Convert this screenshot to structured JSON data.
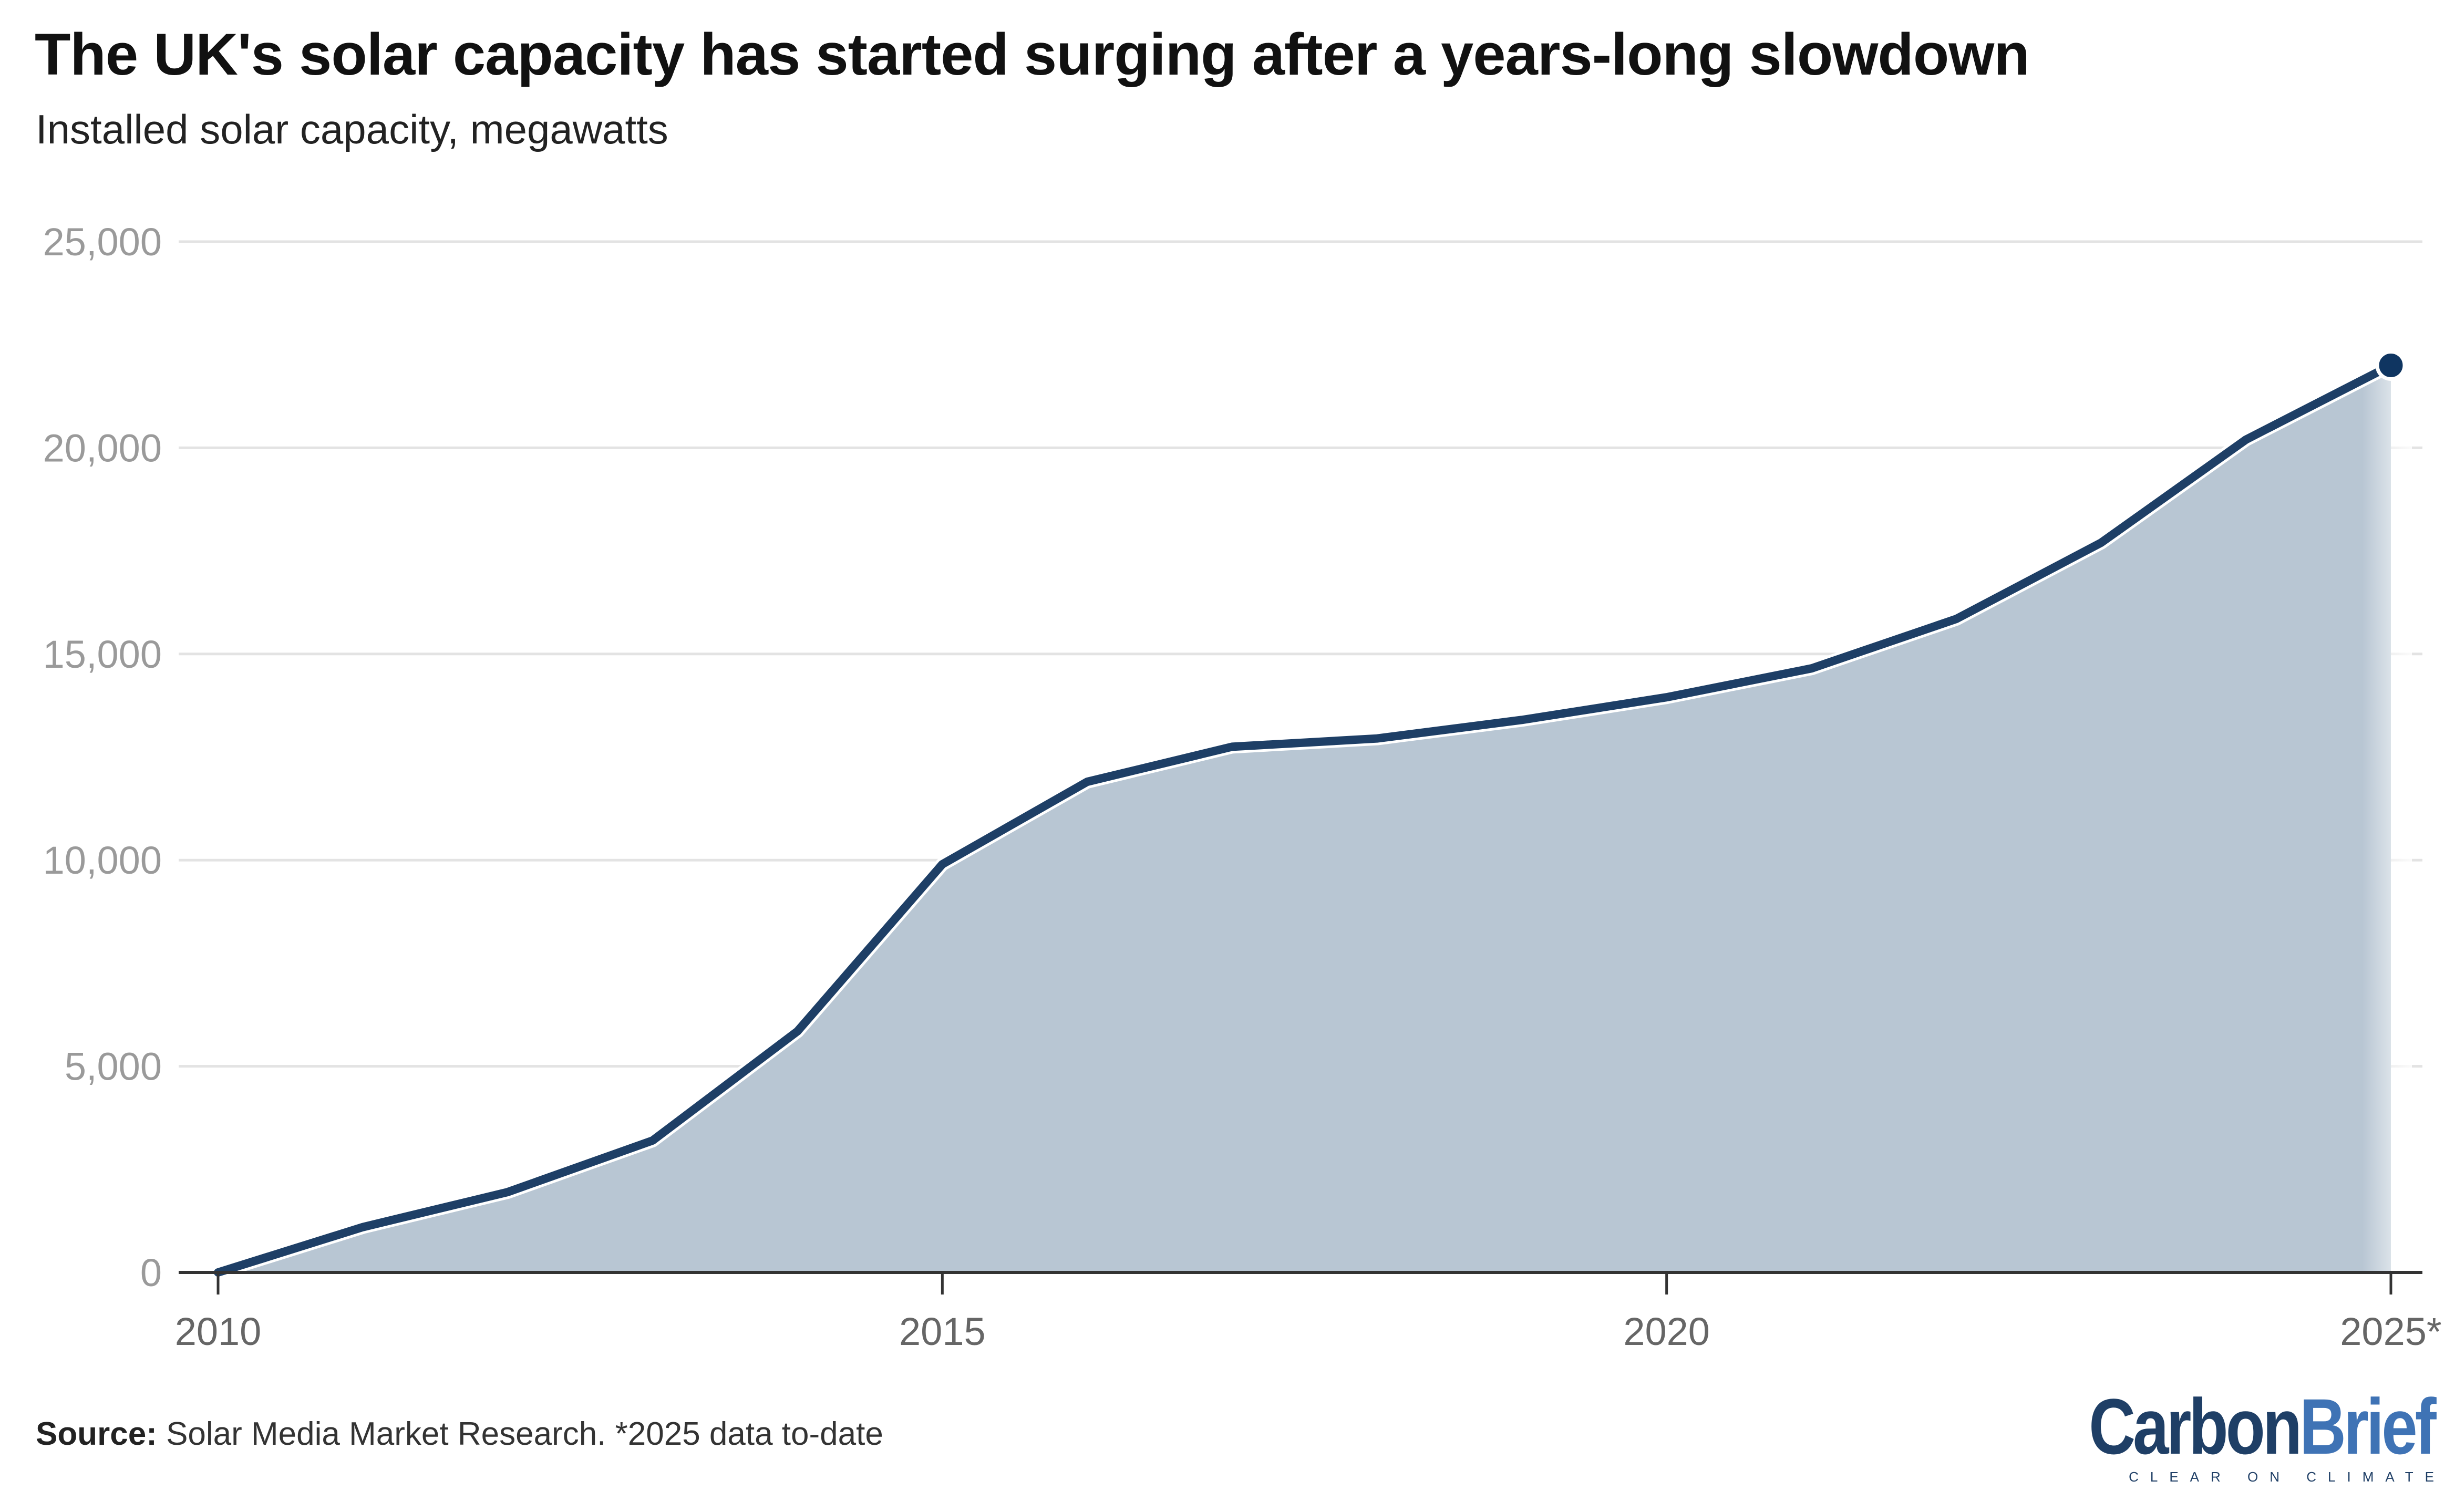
{
  "header": {
    "title": "The UK's solar capacity has started surging after a years-long slowdown",
    "subtitle": "Installed solar capacity, megawatts"
  },
  "footer": {
    "source_label": "Source:",
    "source_text": " Solar Media Market Research. *2025 data to-date"
  },
  "logo": {
    "word_carbon": "Carbon",
    "word_brief": "Brief",
    "tagline": "CLEAR ON CLIMATE"
  },
  "colors": {
    "line": "#1e3f66",
    "area": "#b8c6d3",
    "endpoint": "#0f3561",
    "grid": "#e3e3e3",
    "axis_text": "#9a9a9a",
    "axis_line": "#333333"
  },
  "chart_data": {
    "type": "area",
    "title": "The UK's solar capacity has started surging after a years-long slowdown",
    "subtitle": "Installed solar capacity, megawatts",
    "xlabel": "",
    "ylabel": "",
    "x": [
      2010,
      2011,
      2012,
      2013,
      2014,
      2015,
      2016,
      2017,
      2018,
      2019,
      2020,
      2021,
      2022,
      2023,
      2024,
      2025
    ],
    "values": [
      0,
      1100,
      1950,
      3200,
      5850,
      9900,
      11900,
      12750,
      12950,
      13400,
      13950,
      14650,
      15850,
      17700,
      20200,
      22000
    ],
    "xlim": [
      2010,
      2025
    ],
    "ylim": [
      0,
      25000
    ],
    "yticks": [
      0,
      5000,
      10000,
      15000,
      20000,
      25000
    ],
    "ytick_labels": [
      "0",
      "5,000",
      "10,000",
      "15,000",
      "20,000",
      "25,000"
    ],
    "xticks": [
      2010,
      2015,
      2020,
      2025
    ],
    "xtick_labels": [
      "2010",
      "2015",
      "2020",
      "2025*"
    ],
    "grid": true,
    "legend": "none",
    "highlight_last_point": true
  }
}
